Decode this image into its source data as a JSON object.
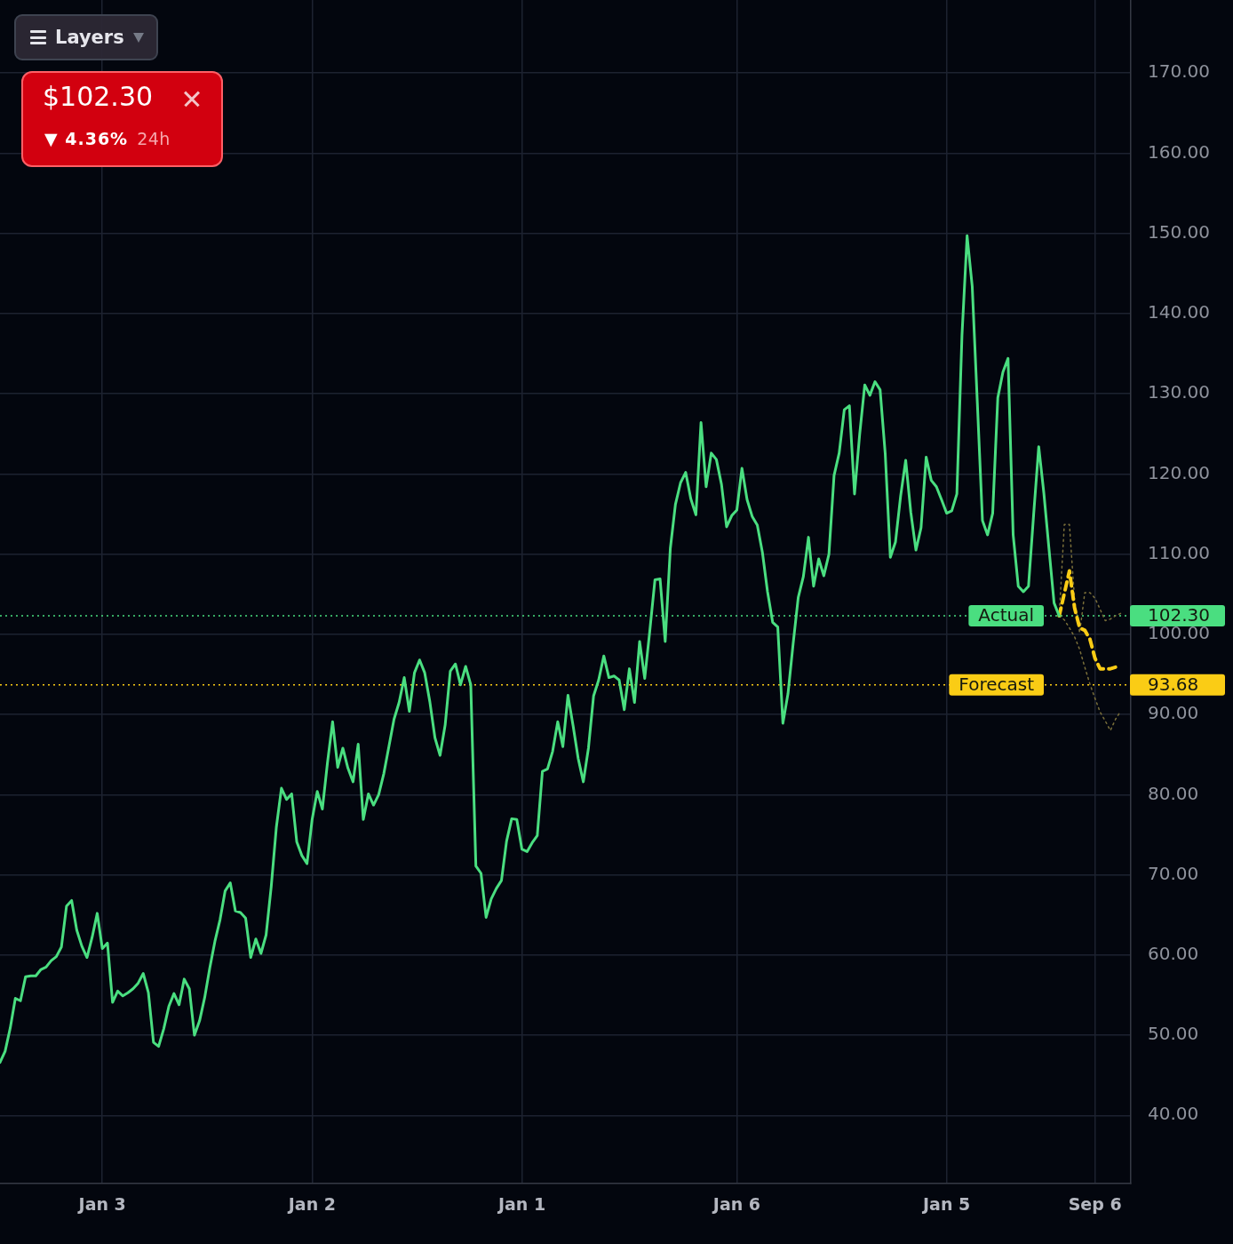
{
  "chart_data": {
    "type": "line",
    "annotations": [
      "Layers",
      "$102.30",
      "▼ 4.36%",
      "24h",
      "102.30",
      "93.68"
    ],
    "categories": [
      null,
      null,
      null,
      null,
      null,
      null,
      null,
      null,
      null,
      null,
      null,
      null,
      null,
      null,
      null,
      null,
      null,
      null,
      null,
      null,
      "Jan 3",
      null,
      null,
      null,
      null,
      null,
      null,
      null,
      null,
      null,
      null,
      null,
      null,
      null,
      null,
      null,
      null,
      null,
      null,
      null,
      null,
      null,
      null,
      null,
      null,
      null,
      null,
      null,
      null,
      null,
      null,
      null,
      null,
      null,
      null,
      null,
      null,
      null,
      null,
      null,
      null,
      "Jan 2",
      null,
      null,
      null,
      null,
      null,
      null,
      null,
      null,
      null,
      null,
      null,
      null,
      null,
      null,
      null,
      null,
      null,
      null,
      null,
      null,
      null,
      null,
      null,
      null,
      null,
      null,
      null,
      null,
      null,
      null,
      null,
      null,
      null,
      null,
      null,
      null,
      null,
      null,
      null,
      null,
      "Jan 1",
      null,
      null,
      null,
      null,
      null,
      null,
      null,
      null,
      null,
      null,
      null,
      null,
      null,
      null,
      null,
      null,
      null,
      null,
      null,
      null,
      null,
      null,
      null,
      null,
      null,
      null,
      null,
      null,
      null,
      null,
      null,
      null,
      null,
      null,
      null,
      null,
      null,
      null,
      null,
      null,
      null,
      "Jan 6",
      null,
      null,
      null,
      null,
      null,
      null,
      null,
      null,
      null,
      null,
      null,
      null,
      null,
      null,
      null,
      null,
      null,
      null,
      null,
      null,
      null,
      null,
      null,
      null,
      null,
      null,
      null,
      null,
      null,
      null,
      null,
      null,
      null,
      null,
      null,
      null,
      null,
      null,
      null,
      null,
      "Jan 5",
      null,
      null,
      null,
      null,
      null,
      null,
      null,
      null,
      null,
      null,
      null,
      null,
      null,
      null,
      null,
      null,
      null,
      null,
      null,
      null,
      null,
      null,
      null,
      null,
      null,
      null,
      null,
      null,
      "Sep 6",
      null,
      null,
      null,
      null,
      null,
      null,
      null
    ],
    "ylim": [
      31.5,
      179.1
    ],
    "yticks": [
      {
        "value": 40,
        "label": "40.00"
      },
      {
        "value": 50,
        "label": "50.00"
      },
      {
        "value": 60,
        "label": "60.00"
      },
      {
        "value": 70,
        "label": "70.00"
      },
      {
        "value": 80,
        "label": "80.00"
      },
      {
        "value": 90,
        "label": "90.00"
      },
      {
        "value": 100,
        "label": "100.00"
      },
      {
        "value": 110,
        "label": "110.00"
      },
      {
        "value": 120,
        "label": "120.00"
      },
      {
        "value": 130,
        "label": "130.00"
      },
      {
        "value": 140,
        "label": "140.00"
      },
      {
        "value": 150,
        "label": "150.00"
      },
      {
        "value": 160,
        "label": "160.00"
      },
      {
        "value": 170,
        "label": "170.00"
      }
    ],
    "grid": true,
    "marker": "none",
    "ref_lines": [
      {
        "axis": "y",
        "value": 102.3,
        "label": "Actual",
        "color": "#4ade80",
        "line_style": "dotted"
      },
      {
        "axis": "y",
        "value": 93.68,
        "label": "Forecast",
        "color": "#facc15",
        "line_style": "dotted"
      }
    ],
    "series": [
      {
        "color": "#4ade80",
        "values": [
          46.6,
          48.0,
          50.9,
          54.6,
          54.3,
          57.3,
          57.4,
          57.4,
          58.2,
          58.5,
          59.3,
          59.8,
          61.0,
          66.1,
          66.8,
          63.1,
          61.1,
          59.7,
          62.2,
          65.2,
          60.8,
          61.5,
          54.1,
          55.5,
          54.9,
          55.3,
          55.8,
          56.5,
          57.7,
          55.3,
          49.1,
          48.6,
          50.8,
          53.6,
          55.2,
          53.8,
          57.0,
          55.8,
          50.0,
          51.8,
          54.7,
          58.4,
          61.7,
          64.4,
          68.0,
          69.0,
          65.5,
          65.3,
          64.6,
          59.7,
          62.0,
          60.2,
          62.5,
          68.5,
          75.9,
          80.8,
          79.4,
          80.1,
          74.1,
          72.4,
          71.4,
          76.9,
          80.4,
          78.2,
          84.0,
          89.1,
          83.4,
          85.8,
          83.3,
          81.6,
          86.3,
          76.9,
          80.1,
          78.7,
          80.0,
          82.6,
          86.0,
          89.4,
          91.5,
          94.6,
          90.4,
          95.2,
          96.8,
          95.2,
          91.6,
          87.1,
          84.9,
          88.7,
          95.4,
          96.3,
          93.7,
          96.0,
          93.7,
          71.1,
          70.2,
          64.7,
          67.0,
          68.3,
          69.3,
          74.2,
          77.0,
          76.9,
          73.2,
          72.9,
          74.0,
          74.9,
          82.9,
          83.2,
          85.4,
          89.1,
          86.0,
          92.4,
          88.6,
          84.5,
          81.6,
          85.8,
          92.3,
          94.3,
          97.3,
          94.6,
          94.8,
          94.3,
          90.6,
          95.7,
          91.5,
          99.1,
          94.5,
          100.5,
          106.8,
          106.9,
          99.1,
          110.7,
          116.2,
          118.9,
          120.2,
          116.9,
          114.9,
          126.4,
          118.4,
          122.6,
          121.8,
          118.7,
          113.4,
          114.8,
          115.5,
          120.7,
          116.8,
          114.7,
          113.6,
          110.2,
          105.3,
          101.5,
          100.9,
          88.9,
          92.6,
          98.8,
          104.6,
          107.2,
          112.1,
          106.0,
          109.4,
          107.3,
          110.0,
          119.8,
          122.6,
          128.0,
          128.5,
          117.5,
          124.9,
          131.1,
          129.8,
          131.5,
          130.5,
          122.5,
          109.6,
          111.5,
          117.2,
          121.7,
          115.2,
          110.5,
          113.3,
          122.1,
          119.2,
          118.4,
          116.8,
          115.1,
          115.4,
          117.5,
          137.3,
          149.7,
          143.4,
          128.9,
          114.2,
          112.4,
          115.1,
          129.5,
          132.7,
          134.4,
          112.4,
          106.0,
          105.3,
          106.0,
          114.9,
          123.4,
          117.6,
          110.7,
          103.9,
          102.3,
          null,
          null,
          null,
          null,
          null,
          null,
          null,
          null,
          null,
          null,
          null,
          null,
          null,
          null
        ]
      },
      {
        "color": "#facc15",
        "line_style": "dashed",
        "values": [
          null,
          null,
          null,
          null,
          null,
          null,
          null,
          null,
          null,
          null,
          null,
          null,
          null,
          null,
          null,
          null,
          null,
          null,
          null,
          null,
          null,
          null,
          null,
          null,
          null,
          null,
          null,
          null,
          null,
          null,
          null,
          null,
          null,
          null,
          null,
          null,
          null,
          null,
          null,
          null,
          null,
          null,
          null,
          null,
          null,
          null,
          null,
          null,
          null,
          null,
          null,
          null,
          null,
          null,
          null,
          null,
          null,
          null,
          null,
          null,
          null,
          null,
          null,
          null,
          null,
          null,
          null,
          null,
          null,
          null,
          null,
          null,
          null,
          null,
          null,
          null,
          null,
          null,
          null,
          null,
          null,
          null,
          null,
          null,
          null,
          null,
          null,
          null,
          null,
          null,
          null,
          null,
          null,
          null,
          null,
          null,
          null,
          null,
          null,
          null,
          null,
          null,
          null,
          null,
          null,
          null,
          null,
          null,
          null,
          null,
          null,
          null,
          null,
          null,
          null,
          null,
          null,
          null,
          null,
          null,
          null,
          null,
          null,
          null,
          null,
          null,
          null,
          null,
          null,
          null,
          null,
          null,
          null,
          null,
          null,
          null,
          null,
          null,
          null,
          null,
          null,
          null,
          null,
          null,
          null,
          null,
          null,
          null,
          null,
          null,
          null,
          null,
          null,
          null,
          null,
          null,
          null,
          null,
          null,
          null,
          null,
          null,
          null,
          null,
          null,
          null,
          null,
          null,
          null,
          null,
          null,
          null,
          null,
          null,
          null,
          null,
          null,
          null,
          null,
          null,
          null,
          null,
          null,
          null,
          null,
          null,
          null,
          null,
          null,
          null,
          null,
          null,
          null,
          null,
          null,
          null,
          null,
          null,
          null,
          null,
          null,
          null,
          null,
          null,
          null,
          null,
          null,
          102.3,
          105.1,
          107.9,
          103.3,
          100.8,
          100.5,
          99.4,
          97.0,
          95.7,
          95.7,
          95.7,
          95.9,
          null,
          null,
          null
        ]
      },
      {
        "color": "#7a6f3a",
        "line_style": "dotted",
        "values": [
          null,
          null,
          null,
          null,
          null,
          null,
          null,
          null,
          null,
          null,
          null,
          null,
          null,
          null,
          null,
          null,
          null,
          null,
          null,
          null,
          null,
          null,
          null,
          null,
          null,
          null,
          null,
          null,
          null,
          null,
          null,
          null,
          null,
          null,
          null,
          null,
          null,
          null,
          null,
          null,
          null,
          null,
          null,
          null,
          null,
          null,
          null,
          null,
          null,
          null,
          null,
          null,
          null,
          null,
          null,
          null,
          null,
          null,
          null,
          null,
          null,
          null,
          null,
          null,
          null,
          null,
          null,
          null,
          null,
          null,
          null,
          null,
          null,
          null,
          null,
          null,
          null,
          null,
          null,
          null,
          null,
          null,
          null,
          null,
          null,
          null,
          null,
          null,
          null,
          null,
          null,
          null,
          null,
          null,
          null,
          null,
          null,
          null,
          null,
          null,
          null,
          null,
          null,
          null,
          null,
          null,
          null,
          null,
          null,
          null,
          null,
          null,
          null,
          null,
          null,
          null,
          null,
          null,
          null,
          null,
          null,
          null,
          null,
          null,
          null,
          null,
          null,
          null,
          null,
          null,
          null,
          null,
          null,
          null,
          null,
          null,
          null,
          null,
          null,
          null,
          null,
          null,
          null,
          null,
          null,
          null,
          null,
          null,
          null,
          null,
          null,
          null,
          null,
          null,
          null,
          null,
          null,
          null,
          null,
          null,
          null,
          null,
          null,
          null,
          null,
          null,
          null,
          null,
          null,
          null,
          null,
          null,
          null,
          null,
          null,
          null,
          null,
          null,
          null,
          null,
          null,
          null,
          null,
          null,
          null,
          null,
          null,
          null,
          null,
          null,
          null,
          null,
          null,
          null,
          null,
          null,
          null,
          null,
          null,
          null,
          null,
          null,
          null,
          null,
          null,
          null,
          null,
          102.3,
          113.7,
          113.7,
          104.3,
          100.2,
          105.2,
          105.2,
          104.5,
          103.1,
          101.7,
          101.9,
          102.3,
          102.6,
          null,
          null
        ]
      },
      {
        "color": "#7a6f3a",
        "line_style": "dotted",
        "values": [
          null,
          null,
          null,
          null,
          null,
          null,
          null,
          null,
          null,
          null,
          null,
          null,
          null,
          null,
          null,
          null,
          null,
          null,
          null,
          null,
          null,
          null,
          null,
          null,
          null,
          null,
          null,
          null,
          null,
          null,
          null,
          null,
          null,
          null,
          null,
          null,
          null,
          null,
          null,
          null,
          null,
          null,
          null,
          null,
          null,
          null,
          null,
          null,
          null,
          null,
          null,
          null,
          null,
          null,
          null,
          null,
          null,
          null,
          null,
          null,
          null,
          null,
          null,
          null,
          null,
          null,
          null,
          null,
          null,
          null,
          null,
          null,
          null,
          null,
          null,
          null,
          null,
          null,
          null,
          null,
          null,
          null,
          null,
          null,
          null,
          null,
          null,
          null,
          null,
          null,
          null,
          null,
          null,
          null,
          null,
          null,
          null,
          null,
          null,
          null,
          null,
          null,
          null,
          null,
          null,
          null,
          null,
          null,
          null,
          null,
          null,
          null,
          null,
          null,
          null,
          null,
          null,
          null,
          null,
          null,
          null,
          null,
          null,
          null,
          null,
          null,
          null,
          null,
          null,
          null,
          null,
          null,
          null,
          null,
          null,
          null,
          null,
          null,
          null,
          null,
          null,
          null,
          null,
          null,
          null,
          null,
          null,
          null,
          null,
          null,
          null,
          null,
          null,
          null,
          null,
          null,
          null,
          null,
          null,
          null,
          null,
          null,
          null,
          null,
          null,
          null,
          null,
          null,
          null,
          null,
          null,
          null,
          null,
          null,
          null,
          null,
          null,
          null,
          null,
          null,
          null,
          null,
          null,
          null,
          null,
          null,
          null,
          null,
          null,
          null,
          null,
          null,
          null,
          null,
          null,
          null,
          null,
          null,
          null,
          null,
          null,
          null,
          null,
          null,
          null,
          null,
          null,
          102.3,
          101.8,
          100.8,
          99.7,
          98.1,
          95.9,
          93.8,
          92.0,
          90.3,
          89.2,
          88.0,
          89.4,
          90.4,
          null,
          null
        ]
      }
    ]
  }
}
